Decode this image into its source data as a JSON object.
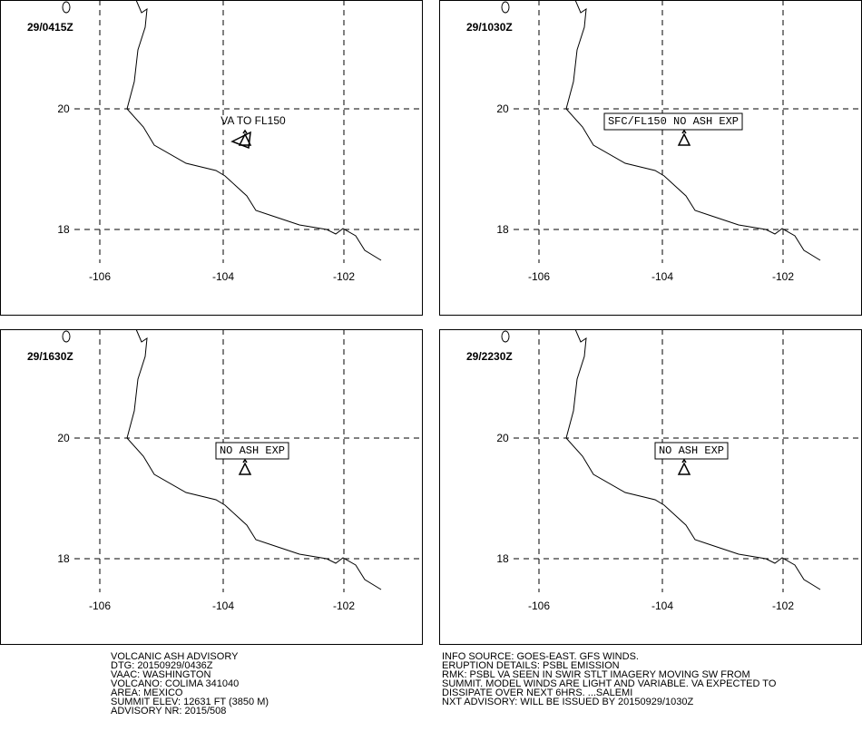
{
  "panels": [
    {
      "time": "29/0415Z",
      "annotation": "VA TO FL150",
      "boxed": false
    },
    {
      "time": "29/1030Z",
      "annotation": "SFC/FL150 NO ASH EXP",
      "boxed": true
    },
    {
      "time": "29/1630Z",
      "annotation": "NO ASH EXP",
      "boxed": true
    },
    {
      "time": "29/2230Z",
      "annotation": "NO ASH EXP",
      "boxed": true
    }
  ],
  "lat_labels": [
    "20",
    "18"
  ],
  "lon_labels": [
    "-106",
    "-104",
    "-102"
  ],
  "footer": {
    "left": [
      "VOLCANIC ASH ADVISORY",
      "DTG: 20150929/0436Z",
      "VAAC: WASHINGTON",
      "VOLCANO: COLIMA 341040",
      "AREA: MEXICO",
      "SUMMIT ELEV: 12631 FT (3850 M)",
      "ADVISORY NR: 2015/508"
    ],
    "right": [
      "INFO SOURCE: GOES-EAST. GFS WINDS.",
      "ERUPTION DETAILS: PSBL EMISSION",
      "RMK: PSBL VA SEEN IN SWIR STLT IMAGERY MOVING SW FROM",
      "SUMMIT. MODEL WINDS ARE LIGHT AND VARIABLE. VA EXPECTED TO",
      "DISSIPATE OVER NEXT 6HRS. ...SALEMI",
      "NXT ADVISORY: WILL BE ISSUED BY 20150929/1030Z"
    ]
  }
}
